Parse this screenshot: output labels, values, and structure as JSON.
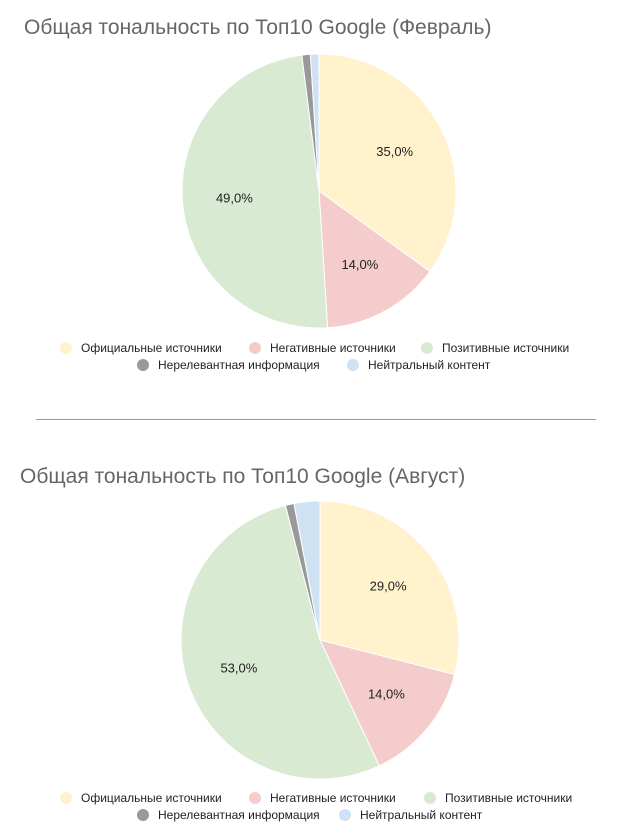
{
  "chart_data": [
    {
      "type": "pie",
      "title": "Общая тональность по Топ10 Google (Февраль)",
      "slices": [
        {
          "name": "Официальные источники",
          "value": 35.0,
          "label": "35,0%",
          "color": "#fff2cc"
        },
        {
          "name": "Негативные источники",
          "value": 14.0,
          "label": "14,0%",
          "color": "#f4cccc"
        },
        {
          "name": "Позитивные источники",
          "value": 49.0,
          "label": "49,0%",
          "color": "#d9ead3"
        },
        {
          "name": "Нерелевантная информация",
          "value": 1.0,
          "label": "",
          "color": "#999999"
        },
        {
          "name": "Нейтральный контент",
          "value": 1.0,
          "label": "",
          "color": "#cfe2f3"
        }
      ],
      "legend": "bottom"
    },
    {
      "type": "pie",
      "title": "Общая тональность по Топ10 Google (Август)",
      "slices": [
        {
          "name": "Официальные источники",
          "value": 29.0,
          "label": "29,0%",
          "color": "#fff2cc"
        },
        {
          "name": "Негативные источники",
          "value": 14.0,
          "label": "14,0%",
          "color": "#f4cccc"
        },
        {
          "name": "Позитивные источники",
          "value": 53.0,
          "label": "53,0%",
          "color": "#d9ead3"
        },
        {
          "name": "Нерелевантная информация",
          "value": 1.0,
          "label": "",
          "color": "#999999"
        },
        {
          "name": "Нейтральный контент",
          "value": 3.0,
          "label": "",
          "color": "#cfe2f3"
        }
      ],
      "legend": "bottom"
    }
  ]
}
